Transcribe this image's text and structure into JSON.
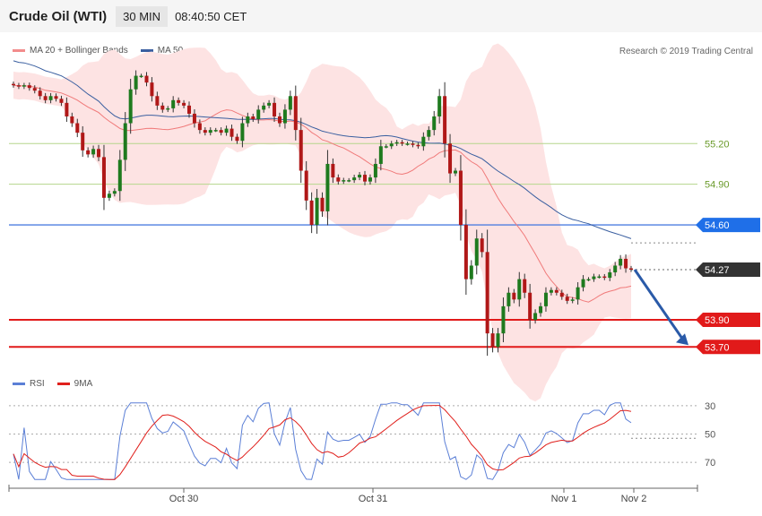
{
  "header": {
    "title": "Crude Oil (WTI)",
    "interval": "30 MIN",
    "time": "08:40:50 CET"
  },
  "legend_main": {
    "item1": "MA 20 + Bollinger Bands",
    "item2": "MA 50",
    "color1": "#f28c8c",
    "color2": "#3a5fa0"
  },
  "credit": "Research © 2019 Trading Central",
  "legend_rsi": {
    "item1": "RSI",
    "item2": "9MA",
    "color1": "#5b7fd6",
    "color2": "#e0201c"
  },
  "chart_data": [
    {
      "type": "candlestick",
      "x_labels": [
        "Oct 30",
        "Oct 31",
        "Nov 1",
        "Nov 2"
      ],
      "ylim": [
        53.55,
        55.75
      ],
      "closes": [
        55.63,
        55.62,
        55.63,
        55.61,
        55.59,
        55.55,
        55.52,
        55.55,
        55.53,
        55.5,
        55.4,
        55.35,
        55.28,
        55.15,
        55.12,
        55.16,
        55.1,
        54.8,
        54.83,
        54.85,
        55.08,
        55.35,
        55.6,
        55.7,
        55.7,
        55.65,
        55.55,
        55.48,
        55.45,
        55.46,
        55.52,
        55.5,
        55.48,
        55.42,
        55.35,
        55.3,
        55.28,
        55.3,
        55.3,
        55.28,
        55.31,
        55.25,
        55.22,
        55.35,
        55.4,
        55.38,
        55.45,
        55.48,
        55.5,
        55.4,
        55.35,
        55.45,
        55.55,
        55.3,
        55.0,
        54.78,
        54.6,
        54.8,
        54.7,
        55.05,
        54.95,
        54.92,
        54.93,
        54.93,
        54.95,
        54.97,
        54.92,
        54.95,
        55.05,
        55.18,
        55.18,
        55.2,
        55.21,
        55.2,
        55.2,
        55.19,
        55.18,
        55.25,
        55.3,
        55.4,
        55.55,
        55.2,
        54.98,
        55.0,
        54.6,
        54.2,
        54.3,
        54.5,
        54.4,
        53.8,
        53.7,
        53.8,
        54.0,
        54.1,
        54.05,
        54.2,
        54.1,
        53.9,
        53.95,
        54.0,
        54.1,
        54.12,
        54.1,
        54.07,
        54.04,
        54.05,
        54.14,
        54.2,
        54.2,
        54.22,
        54.22,
        54.21,
        54.25,
        54.3,
        54.35,
        54.28,
        54.27
      ],
      "support": [
        53.9,
        53.7
      ],
      "resistance": [
        54.6
      ],
      "current_price": 54.27,
      "minor_levels": [
        55.2,
        54.9
      ]
    },
    {
      "type": "line",
      "ylim": [
        20,
        75
      ],
      "yticks": [
        30,
        50,
        70
      ]
    }
  ],
  "price_labels": {
    "r1": "54.60",
    "cur": "54.27",
    "s1": "53.90",
    "s2": "53.70",
    "g1": "55.20",
    "g2": "54.90"
  },
  "rsi_ticks": [
    "70",
    "50",
    "30"
  ]
}
